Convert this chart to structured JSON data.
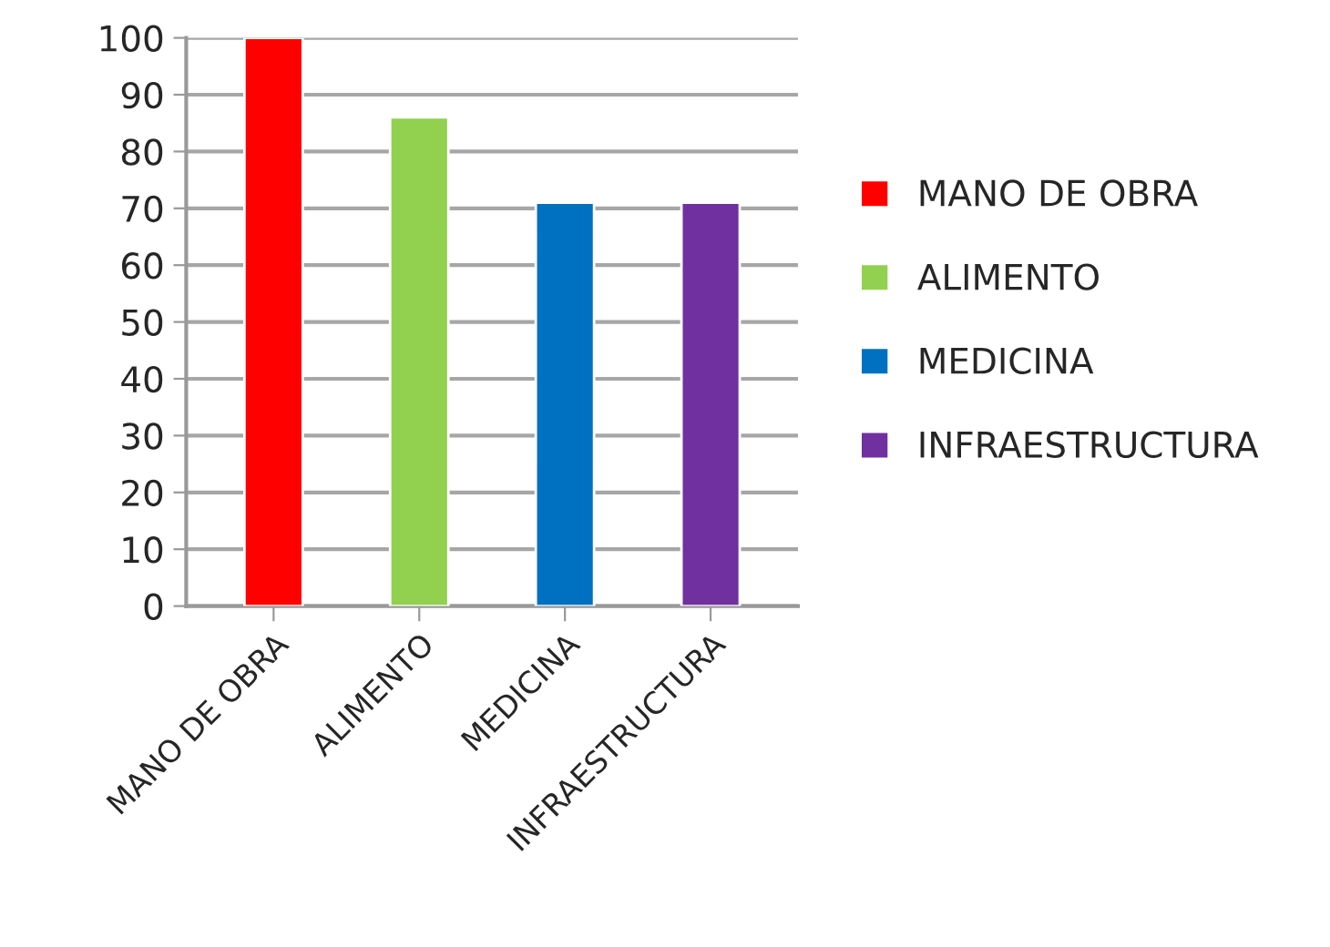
{
  "chart_data": {
    "type": "bar",
    "categories": [
      "MANO DE OBRA",
      "ALIMENTO",
      "MEDICINA",
      "INFRAESTRUCTURA"
    ],
    "series": [
      {
        "name": "MANO DE OBRA",
        "color": "#ff0000",
        "values": [
          100,
          null,
          null,
          null
        ]
      },
      {
        "name": "ALIMENTO",
        "color": "#92d050",
        "values": [
          null,
          86,
          null,
          null
        ]
      },
      {
        "name": "MEDICINA",
        "color": "#0070c0",
        "values": [
          null,
          null,
          71,
          null
        ]
      },
      {
        "name": "INFRAESTRUCTURA",
        "color": "#7030a0",
        "values": [
          null,
          null,
          null,
          71
        ]
      }
    ],
    "ylim": [
      0,
      100
    ],
    "yticks": [
      0,
      10,
      20,
      30,
      40,
      50,
      60,
      70,
      80,
      90,
      100
    ],
    "grid": "y",
    "legend": "right"
  }
}
